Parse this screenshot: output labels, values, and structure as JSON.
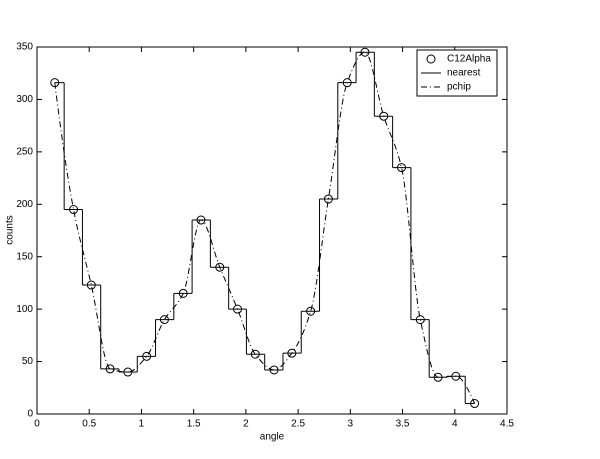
{
  "chart_data": {
    "type": "line",
    "x": [
      0.17,
      0.35,
      0.52,
      0.7,
      0.87,
      1.05,
      1.22,
      1.4,
      1.57,
      1.75,
      1.92,
      2.09,
      2.27,
      2.44,
      2.62,
      2.79,
      2.97,
      3.14,
      3.32,
      3.49,
      3.67,
      3.84,
      4.01,
      4.19
    ],
    "series": [
      {
        "name": "C12Alpha",
        "style": "marker",
        "color": "#000000",
        "values": [
          316,
          195,
          123,
          43,
          40,
          55,
          90,
          115,
          185,
          140,
          100,
          57,
          42,
          58,
          98,
          205,
          316,
          345,
          284,
          235,
          90,
          35,
          36,
          10
        ]
      },
      {
        "name": "nearest",
        "style": "step",
        "color": "#000000",
        "values": [
          316,
          195,
          123,
          43,
          40,
          55,
          90,
          115,
          185,
          140,
          100,
          57,
          42,
          58,
          98,
          205,
          316,
          345,
          284,
          235,
          90,
          35,
          36,
          10
        ]
      },
      {
        "name": "pchip",
        "style": "pchip",
        "color": "#000000",
        "values": [
          316,
          195,
          123,
          43,
          40,
          55,
          90,
          115,
          185,
          140,
          100,
          57,
          42,
          58,
          98,
          205,
          316,
          345,
          284,
          235,
          90,
          35,
          36,
          10
        ]
      }
    ],
    "x_label": "angle",
    "y_label": "counts",
    "xlim": [
      0,
      4.5
    ],
    "xticks": [
      0,
      0.5,
      1,
      1.5,
      2,
      2.5,
      3,
      3.5,
      4,
      4.5
    ],
    "ylim": [
      0,
      350
    ],
    "yticks": [
      0,
      50,
      100,
      150,
      200,
      250,
      300,
      350
    ],
    "grid": false,
    "legend": "top-right"
  }
}
